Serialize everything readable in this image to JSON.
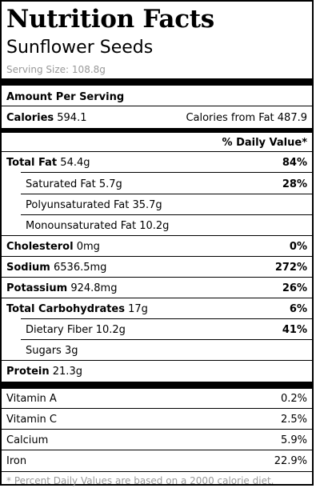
{
  "title": "Nutrition Facts",
  "product": "Sunflower Seeds",
  "serving": {
    "label": "Serving Size:",
    "value": "108.8g"
  },
  "amount_per_serving": "Amount Per Serving",
  "calories": {
    "label": "Calories",
    "value": "594.1",
    "fat_label": "Calories from Fat",
    "fat_value": "487.9"
  },
  "dv_header": "% Daily Value*",
  "nutrients": {
    "total_fat": {
      "label": "Total Fat",
      "amount": "54.4g",
      "dv": "84%"
    },
    "saturated_fat": {
      "label": "Saturated Fat",
      "amount": "5.7g",
      "dv": "28%"
    },
    "poly_fat": {
      "label": "Polyunsaturated Fat",
      "amount": "35.7g"
    },
    "mono_fat": {
      "label": "Monounsaturated Fat",
      "amount": "10.2g"
    },
    "cholesterol": {
      "label": "Cholesterol",
      "amount": "0mg",
      "dv": "0%"
    },
    "sodium": {
      "label": "Sodium",
      "amount": "6536.5mg",
      "dv": "272%"
    },
    "potassium": {
      "label": "Potassium",
      "amount": "924.8mg",
      "dv": "26%"
    },
    "total_carbs": {
      "label": "Total Carbohydrates",
      "amount": "17g",
      "dv": "6%"
    },
    "fiber": {
      "label": "Dietary Fiber",
      "amount": "10.2g",
      "dv": "41%"
    },
    "sugars": {
      "label": "Sugars",
      "amount": "3g"
    },
    "protein": {
      "label": "Protein",
      "amount": "21.3g"
    }
  },
  "vitamins": {
    "vitamin_a": {
      "label": "Vitamin A",
      "dv": "0.2%"
    },
    "vitamin_c": {
      "label": "Vitamin C",
      "dv": "2.5%"
    },
    "calcium": {
      "label": "Calcium",
      "dv": "5.9%"
    },
    "iron": {
      "label": "Iron",
      "dv": "22.9%"
    }
  },
  "footnote": "* Percent Daily Values are based on a 2000 calorie diet."
}
